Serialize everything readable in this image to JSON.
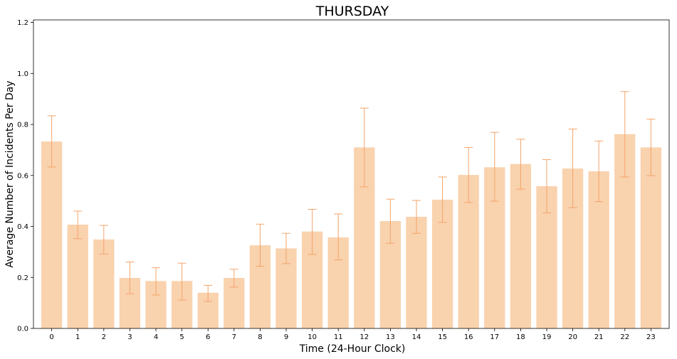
{
  "chart_data": {
    "type": "bar",
    "title": "THURSDAY",
    "xlabel": "Time (24-Hour Clock)",
    "ylabel": "Average Number of Incidents Per Day",
    "categories": [
      "0",
      "1",
      "2",
      "3",
      "4",
      "5",
      "6",
      "7",
      "8",
      "9",
      "10",
      "11",
      "12",
      "13",
      "14",
      "15",
      "16",
      "17",
      "18",
      "19",
      "20",
      "21",
      "22",
      "23"
    ],
    "values": [
      0.733,
      0.407,
      0.349,
      0.198,
      0.186,
      0.186,
      0.14,
      0.198,
      0.326,
      0.314,
      0.38,
      0.357,
      0.71,
      0.421,
      0.438,
      0.505,
      0.602,
      0.632,
      0.645,
      0.558,
      0.627,
      0.616,
      0.762,
      0.71
    ],
    "error_low": [
      0.633,
      0.352,
      0.292,
      0.136,
      0.131,
      0.111,
      0.106,
      0.162,
      0.244,
      0.254,
      0.29,
      0.269,
      0.555,
      0.334,
      0.373,
      0.416,
      0.494,
      0.499,
      0.546,
      0.453,
      0.474,
      0.497,
      0.594,
      0.599
    ],
    "error_high": [
      0.834,
      0.46,
      0.404,
      0.261,
      0.238,
      0.256,
      0.169,
      0.232,
      0.409,
      0.373,
      0.467,
      0.449,
      0.864,
      0.507,
      0.502,
      0.594,
      0.71,
      0.769,
      0.742,
      0.662,
      0.782,
      0.735,
      0.929,
      0.821
    ],
    "yticks": [
      "0.0",
      "0.2",
      "0.4",
      "0.6",
      "0.8",
      "1.0",
      "1.2"
    ],
    "ylim": [
      0,
      1.21
    ],
    "grid": false,
    "colors": {
      "bar": "#f9d2ae",
      "error": "#f4a46a",
      "axis": "#000000"
    }
  }
}
